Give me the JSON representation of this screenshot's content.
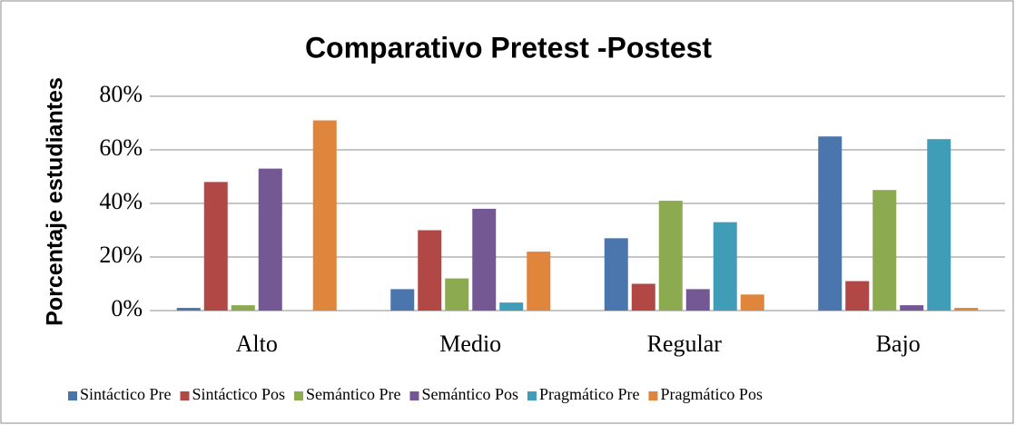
{
  "chart_data": {
    "type": "bar",
    "title": "Comparativo Pretest -Postest",
    "y_label": "Porcentaje estudiantes",
    "categories": [
      "Alto",
      "Medio",
      "Regular",
      "Bajo"
    ],
    "series": [
      {
        "name": "Sintáctico Pre",
        "color": "#4a76ad",
        "values": [
          1,
          8,
          27,
          65
        ]
      },
      {
        "name": "Sintáctico Pos",
        "color": "#b24845",
        "values": [
          48,
          30,
          10,
          11
        ]
      },
      {
        "name": "Semántico Pre",
        "color": "#8caa4f",
        "values": [
          2,
          12,
          41,
          45
        ]
      },
      {
        "name": "Semántico Pos",
        "color": "#735894",
        "values": [
          53,
          38,
          8,
          2
        ]
      },
      {
        "name": "Pragmático Pre",
        "color": "#3f9db8",
        "values": [
          0,
          3,
          33,
          64
        ]
      },
      {
        "name": "Pragmático Pos",
        "color": "#df853c",
        "values": [
          71,
          22,
          6,
          1
        ]
      }
    ],
    "ylim": [
      0,
      80
    ],
    "yticks": [
      {
        "value": 0,
        "label": "0%"
      },
      {
        "value": 20,
        "label": "20%"
      },
      {
        "value": 40,
        "label": "40%"
      },
      {
        "value": 60,
        "label": "60%"
      },
      {
        "value": 80,
        "label": "80%"
      }
    ],
    "grid": true,
    "legend": "bottom"
  }
}
